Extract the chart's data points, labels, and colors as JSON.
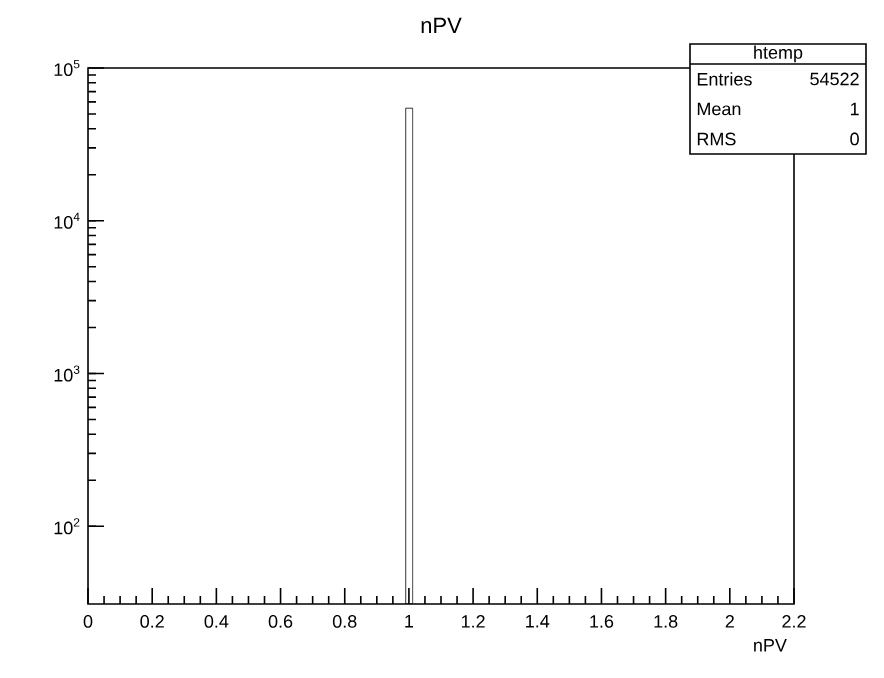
{
  "chart_data": {
    "type": "histogram",
    "title": "nPV",
    "xlabel": "nPV",
    "bins": [
      0.99,
      1.012
    ],
    "values": [
      54522
    ],
    "color": "#000000",
    "log": "y",
    "xlim": [
      0,
      2.2
    ],
    "xticks": [
      0,
      0.2,
      0.4,
      0.6,
      0.8,
      1,
      1.2,
      1.4,
      1.6,
      1.8,
      2,
      2.2
    ],
    "ylim": [
      31,
      100000
    ],
    "yticks": [
      {
        "value": 100,
        "label": "10$^{2}$"
      },
      {
        "value": 1000,
        "label": "10$^{3}$"
      },
      {
        "value": 10000,
        "label": "10$^{4}$"
      },
      {
        "value": 100000,
        "label": "10$^{5}$"
      }
    ],
    "annotations": [
      "htemp",
      "Entries",
      "54522",
      "Mean",
      "1",
      "RMS",
      "0"
    ]
  }
}
